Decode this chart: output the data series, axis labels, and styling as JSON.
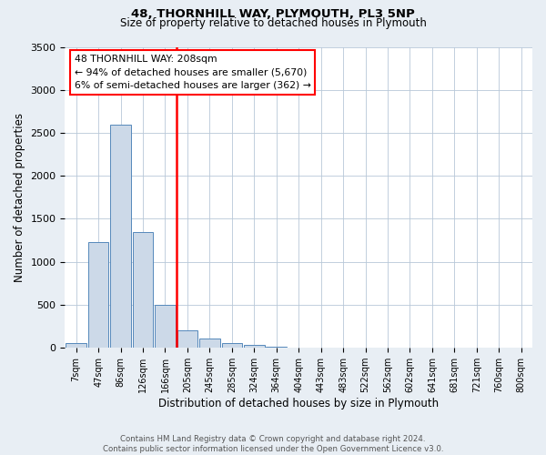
{
  "title": "48, THORNHILL WAY, PLYMOUTH, PL3 5NP",
  "subtitle": "Size of property relative to detached houses in Plymouth",
  "xlabel": "Distribution of detached houses by size in Plymouth",
  "ylabel": "Number of detached properties",
  "bar_labels": [
    "7sqm",
    "47sqm",
    "86sqm",
    "126sqm",
    "166sqm",
    "205sqm",
    "245sqm",
    "285sqm",
    "324sqm",
    "364sqm",
    "404sqm",
    "443sqm",
    "483sqm",
    "522sqm",
    "562sqm",
    "602sqm",
    "641sqm",
    "681sqm",
    "721sqm",
    "760sqm",
    "800sqm"
  ],
  "bar_values": [
    50,
    1230,
    2590,
    1350,
    500,
    200,
    110,
    50,
    30,
    10,
    0,
    0,
    0,
    0,
    0,
    0,
    0,
    0,
    0,
    0,
    0
  ],
  "bar_color": "#ccd9e8",
  "bar_edgecolor": "#5588bb",
  "ylim": [
    0,
    3500
  ],
  "yticks": [
    0,
    500,
    1000,
    1500,
    2000,
    2500,
    3000,
    3500
  ],
  "vline_pos": 4.5,
  "vline_color": "red",
  "annotation_title": "48 THORNHILL WAY: 208sqm",
  "annotation_line1": "← 94% of detached houses are smaller (5,670)",
  "annotation_line2": "6% of semi-detached houses are larger (362) →",
  "annotation_box_color": "white",
  "annotation_box_edgecolor": "red",
  "footer_line1": "Contains HM Land Registry data © Crown copyright and database right 2024.",
  "footer_line2": "Contains public sector information licensed under the Open Government Licence v3.0.",
  "background_color": "#e8eef4",
  "plot_background": "white",
  "grid_color": "#b8c8d8"
}
